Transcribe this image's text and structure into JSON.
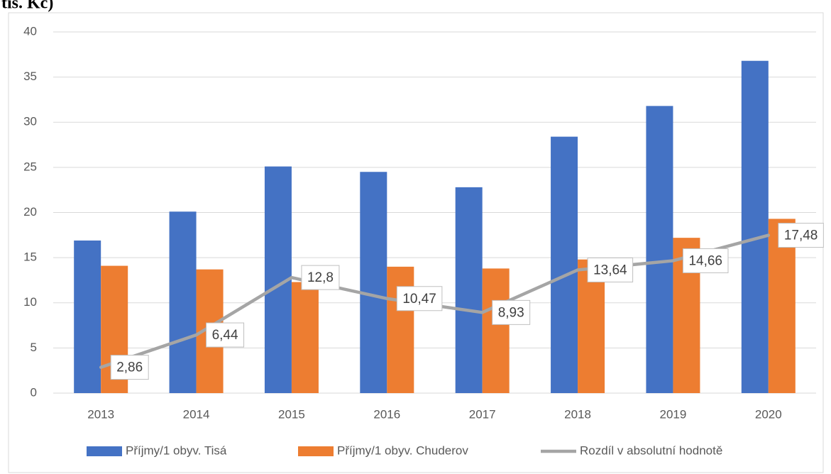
{
  "chart_data": {
    "type": "bar+line",
    "title": "tis. Kč)",
    "categories": [
      "2013",
      "2014",
      "2015",
      "2016",
      "2017",
      "2018",
      "2019",
      "2020"
    ],
    "series": [
      {
        "name": "Příjmy/1 obyv. Tisá",
        "type": "bar",
        "color": "#4472c4",
        "values": [
          16.9,
          20.1,
          25.1,
          24.5,
          22.8,
          28.4,
          31.8,
          36.8
        ]
      },
      {
        "name": "Příjmy/1 obyv. Chuderov",
        "type": "bar",
        "color": "#ed7d31",
        "values": [
          14.1,
          13.7,
          12.3,
          14.0,
          13.8,
          14.8,
          17.2,
          19.3
        ]
      },
      {
        "name": "Rozdíl v absolutní hodnotě",
        "type": "line",
        "color": "#a5a5a5",
        "values": [
          2.86,
          6.44,
          12.8,
          10.47,
          8.93,
          13.64,
          14.66,
          17.48
        ],
        "value_labels": [
          "2,86",
          "6,44",
          "12,8",
          "10,47",
          "8,93",
          "13,64",
          "14,66",
          "17,48"
        ]
      }
    ],
    "ylim": [
      0,
      40
    ],
    "yticks": [
      0,
      5,
      10,
      15,
      20,
      25,
      30,
      35,
      40
    ],
    "grid": true,
    "legend": "bottom"
  }
}
